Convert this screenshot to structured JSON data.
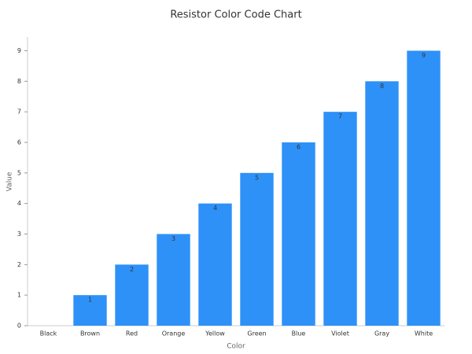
{
  "chart_data": {
    "type": "bar",
    "title": "Resistor Color Code Chart",
    "x_label": "Color",
    "y_label": "Value",
    "categories": [
      "Black",
      "Brown",
      "Red",
      "Orange",
      "Yellow",
      "Green",
      "Blue",
      "Violet",
      "Gray",
      "White"
    ],
    "values": [
      0,
      1,
      2,
      3,
      4,
      5,
      6,
      7,
      8,
      9
    ],
    "color": "#2e91f8",
    "ylim": [
      0,
      9.45
    ],
    "yticks": [
      0,
      1,
      2,
      3,
      4,
      5,
      6,
      7,
      8,
      9
    ],
    "grid": false
  }
}
